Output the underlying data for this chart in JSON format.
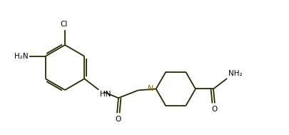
{
  "bg_color": "#ffffff",
  "line_color": "#2a2a00",
  "text_color": "#000000",
  "n_color": "#8B6914",
  "bond_width": 1.3,
  "figsize": [
    4.05,
    1.89
  ],
  "dpi": 100,
  "xlim": [
    0,
    10.5
  ],
  "ylim": [
    0,
    4.5
  ]
}
